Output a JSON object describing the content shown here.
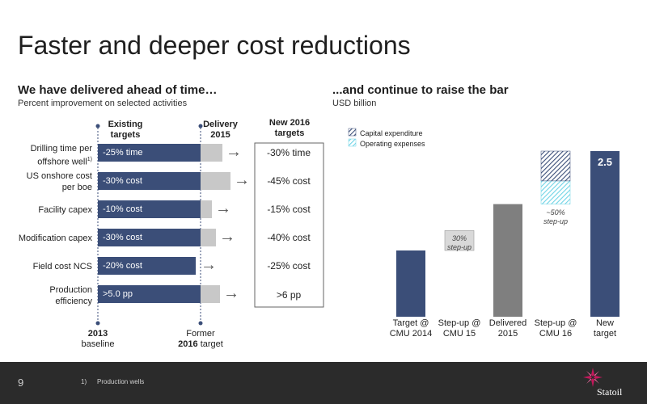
{
  "title": "Faster and deeper cost reductions",
  "left": {
    "heading": "We have delivered ahead of time…",
    "subheading": "Percent improvement on selected activities",
    "col_existing": [
      "Existing",
      "targets"
    ],
    "col_delivery": [
      "Delivery",
      "2015"
    ],
    "col_new": [
      "New 2016",
      "targets"
    ],
    "rows": [
      {
        "label": [
          "Drilling time per",
          "offshore well"
        ],
        "sup": "1)",
        "existing": "-25% time",
        "new": "-30% time"
      },
      {
        "label": [
          "US onshore cost",
          "per boe"
        ],
        "existing": "-30% cost",
        "new": "-45% cost"
      },
      {
        "label": [
          "Facility capex"
        ],
        "existing": "-10% cost",
        "new": "-15% cost"
      },
      {
        "label": [
          "Modification capex"
        ],
        "existing": "-30% cost",
        "new": "-40% cost"
      },
      {
        "label": [
          "Field cost NCS"
        ],
        "existing": "-20% cost",
        "new": "-25% cost"
      },
      {
        "label": [
          "Production",
          "efficiency"
        ],
        "existing": ">5.0 pp",
        "new": ">6 pp"
      }
    ],
    "baseline_label": [
      "2013",
      "baseline"
    ],
    "former_label": [
      "Former",
      "2016 target"
    ]
  },
  "right": {
    "heading": "...and continue to raise the bar",
    "subheading": "USD billion",
    "legend": [
      "Capital expenditure",
      "Operating expenses"
    ],
    "notes": {
      "stepup15": [
        "30%",
        "step-up"
      ],
      "stepup16": [
        "~50%",
        "step-up"
      ]
    },
    "value_label": "2.5"
  },
  "footer": {
    "page": "9",
    "footnote_mark": "1)",
    "footnote": "Production wells",
    "logo_text": "Statoil"
  },
  "colors": {
    "navy": "#3b4e78",
    "grey": "#c8c8c8",
    "darkgrey": "#7f7f7f",
    "lightgrey": "#d9d9d9",
    "cyan": "#9fe3ef",
    "footer": "#2b2b2b",
    "logo": "#c2185b"
  },
  "chart_data": [
    {
      "type": "bar",
      "orientation": "horizontal",
      "categories": [
        "Drilling time per offshore well",
        "US onshore cost per boe",
        "Facility capex",
        "Modification capex",
        "Field cost NCS",
        "Production efficiency"
      ],
      "series": [
        {
          "name": "Existing targets",
          "values": [
            25,
            30,
            10,
            30,
            20,
            5.0
          ]
        },
        {
          "name": "Delivery 2015",
          "values": [
            30,
            40,
            15,
            35,
            20,
            6.0
          ]
        },
        {
          "name": "New 2016 targets",
          "values": [
            30,
            45,
            15,
            40,
            25,
            6
          ]
        }
      ]
    },
    {
      "type": "bar",
      "stacked": true,
      "categories": [
        "Target @ CMU 2014",
        "Step-up @ CMU 15",
        "Delivered 2015",
        "Step-up @ CMU 16",
        "New target"
      ],
      "series": [
        {
          "name": "Base",
          "values": [
            0,
            1.0,
            0,
            1.7,
            0
          ]
        },
        {
          "name": "Total",
          "values": [
            1.0,
            0.3,
            1.7,
            0,
            2.5
          ]
        },
        {
          "name": "Capital expenditure",
          "values": [
            0,
            0,
            0,
            0.45,
            0
          ]
        },
        {
          "name": "Operating expenses",
          "values": [
            0,
            0,
            0,
            0.35,
            0
          ]
        }
      ],
      "ylim": [
        0,
        2.6
      ]
    }
  ]
}
